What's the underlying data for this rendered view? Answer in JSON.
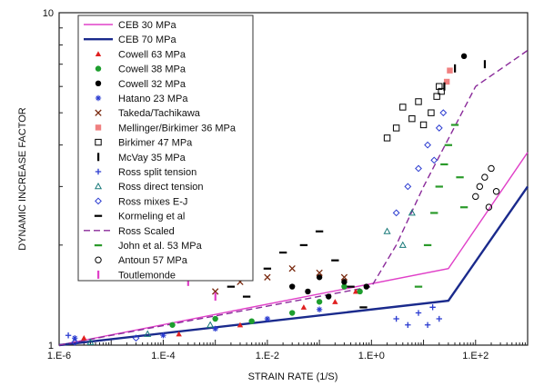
{
  "chart_data": {
    "type": "scatter",
    "xlabel": "STRAIN RATE (1/S)",
    "ylabel": "DYNAMIC INCREASE FACTOR",
    "x_scale": "log",
    "y_scale": "log",
    "xlim": [
      1e-06,
      1000
    ],
    "ylim": [
      1,
      10
    ],
    "x_ticks": [
      {
        "value": 1e-06,
        "label": "1.E-6"
      },
      {
        "value": 0.0001,
        "label": "1.E-4"
      },
      {
        "value": 0.01,
        "label": "1.E-2"
      },
      {
        "value": 1,
        "label": "1.E+0"
      },
      {
        "value": 100,
        "label": "1.E+2"
      }
    ],
    "y_ticks": [
      {
        "value": 1,
        "label": "1"
      },
      {
        "value": 10,
        "label": "10"
      }
    ],
    "legend_position": "top-left",
    "series": [
      {
        "name": "CEB 30 MPa",
        "kind": "line",
        "color": "#e040c8",
        "dash": "none",
        "width": 1.4,
        "points": [
          [
            1e-06,
            1.0
          ],
          [
            30,
            1.7
          ],
          [
            1000,
            3.8
          ]
        ]
      },
      {
        "name": "CEB 70 MPa",
        "kind": "line",
        "color": "#1a2a8c",
        "dash": "none",
        "width": 2.4,
        "points": [
          [
            1e-06,
            1.0
          ],
          [
            30,
            1.36
          ],
          [
            1000,
            3.0
          ]
        ]
      },
      {
        "name": "Cowell 63 MPa",
        "kind": "marker",
        "marker": "triangle-filled",
        "color": "#e02020",
        "points": [
          [
            3e-06,
            1.05
          ],
          [
            0.0002,
            1.08
          ],
          [
            0.003,
            1.15
          ],
          [
            0.05,
            1.3
          ],
          [
            0.2,
            1.35
          ],
          [
            0.5,
            1.45
          ]
        ]
      },
      {
        "name": "Cowell 38 MPa",
        "kind": "marker",
        "marker": "circle-filled",
        "color": "#1e9e2e",
        "points": [
          [
            0.00015,
            1.15
          ],
          [
            0.001,
            1.2
          ],
          [
            0.005,
            1.18
          ],
          [
            0.03,
            1.25
          ],
          [
            0.1,
            1.35
          ],
          [
            0.3,
            1.5
          ],
          [
            0.6,
            1.45
          ]
        ]
      },
      {
        "name": "Cowell 32 MPa",
        "kind": "marker",
        "marker": "circle-filled",
        "color": "#000000",
        "points": [
          [
            0.03,
            1.5
          ],
          [
            0.06,
            1.45
          ],
          [
            0.1,
            1.6
          ],
          [
            0.15,
            1.4
          ],
          [
            0.3,
            1.55
          ],
          [
            0.8,
            1.5
          ],
          [
            60,
            7.4
          ]
        ]
      },
      {
        "name": "Hatano 23 MPa",
        "kind": "marker",
        "marker": "star",
        "color": "#2a3bd0",
        "points": [
          [
            2e-06,
            1.05
          ],
          [
            0.0001,
            1.07
          ],
          [
            0.001,
            1.12
          ],
          [
            0.01,
            1.2
          ],
          [
            0.1,
            1.28
          ]
        ]
      },
      {
        "name": "Takeda/Tachikawa",
        "kind": "marker",
        "marker": "x",
        "color": "#7a2a10",
        "points": [
          [
            0.001,
            1.45
          ],
          [
            0.003,
            1.55
          ],
          [
            0.01,
            1.6
          ],
          [
            0.03,
            1.7
          ],
          [
            0.1,
            1.65
          ],
          [
            0.3,
            1.6
          ]
        ]
      },
      {
        "name": "Mellinger/Birkimer 36 MPa",
        "kind": "marker",
        "marker": "square-filled",
        "color": "#f08080",
        "points": [
          [
            28,
            6.2
          ],
          [
            32,
            6.7
          ]
        ]
      },
      {
        "name": "Birkimer 47 MPa",
        "kind": "marker",
        "marker": "square-open",
        "color": "#000000",
        "points": [
          [
            2,
            4.2
          ],
          [
            3,
            4.5
          ],
          [
            4,
            5.2
          ],
          [
            6,
            4.8
          ],
          [
            8,
            5.4
          ],
          [
            10,
            4.6
          ],
          [
            14,
            5.0
          ],
          [
            18,
            5.6
          ],
          [
            20,
            6.0
          ],
          [
            22,
            5.8
          ]
        ]
      },
      {
        "name": "McVay 35 MPa",
        "kind": "marker",
        "marker": "vbar",
        "color": "#000000",
        "points": [
          [
            25,
            6.0
          ],
          [
            40,
            6.8
          ],
          [
            150,
            7.0
          ]
        ]
      },
      {
        "name": "Ross split tension",
        "kind": "marker",
        "marker": "plus",
        "color": "#2a3bd0",
        "points": [
          [
            1.5e-06,
            1.07
          ],
          [
            3,
            1.2
          ],
          [
            5,
            1.15
          ],
          [
            8,
            1.25
          ],
          [
            12,
            1.15
          ],
          [
            15,
            1.3
          ],
          [
            20,
            1.2
          ]
        ]
      },
      {
        "name": "Ross direct tension",
        "kind": "marker",
        "marker": "triangle-open",
        "color": "#1a7a7a",
        "points": [
          [
            4e-06,
            1.02
          ],
          [
            5e-05,
            1.08
          ],
          [
            0.0008,
            1.15
          ],
          [
            2,
            2.2
          ],
          [
            4,
            2.0
          ],
          [
            6,
            2.5
          ]
        ]
      },
      {
        "name": "Ross mixes E-J",
        "kind": "marker",
        "marker": "diamond-open",
        "color": "#2a3bd0",
        "points": [
          [
            2e-06,
            1.02
          ],
          [
            3e-05,
            1.05
          ],
          [
            3,
            2.5
          ],
          [
            5,
            3.0
          ],
          [
            8,
            3.4
          ],
          [
            12,
            4.0
          ],
          [
            16,
            3.6
          ],
          [
            20,
            4.5
          ],
          [
            24,
            5.0
          ]
        ]
      },
      {
        "name": "Kormeling et al",
        "kind": "marker",
        "marker": "dash",
        "color": "#000000",
        "points": [
          [
            0.002,
            1.5
          ],
          [
            0.004,
            1.4
          ],
          [
            0.01,
            1.7
          ],
          [
            0.02,
            1.9
          ],
          [
            0.05,
            2.0
          ],
          [
            0.1,
            2.2
          ],
          [
            0.2,
            1.8
          ],
          [
            0.4,
            1.5
          ],
          [
            0.7,
            1.3
          ]
        ]
      },
      {
        "name": "Ross Scaled",
        "kind": "line",
        "color": "#8a2a9a",
        "dash": "7,4",
        "width": 1.4,
        "points": [
          [
            1e-06,
            1.0
          ],
          [
            1,
            1.5
          ],
          [
            3,
            2.0
          ],
          [
            10,
            3.0
          ],
          [
            100,
            6.0
          ],
          [
            1000,
            7.7
          ]
        ]
      },
      {
        "name": "John et al. 53 MPa",
        "kind": "marker",
        "marker": "dash",
        "color": "#2a9a2a",
        "points": [
          [
            8,
            1.5
          ],
          [
            12,
            2.0
          ],
          [
            16,
            2.5
          ],
          [
            20,
            3.0
          ],
          [
            25,
            3.5
          ],
          [
            30,
            4.0
          ],
          [
            40,
            4.6
          ],
          [
            50,
            3.2
          ],
          [
            60,
            2.6
          ]
        ]
      },
      {
        "name": "Antoun 57 MPa",
        "kind": "marker",
        "marker": "circle-open",
        "color": "#000000",
        "points": [
          [
            100,
            2.8
          ],
          [
            120,
            3.0
          ],
          [
            150,
            3.2
          ],
          [
            180,
            2.6
          ],
          [
            200,
            3.4
          ],
          [
            250,
            2.9
          ]
        ]
      },
      {
        "name": "Toutlemonde",
        "kind": "marker",
        "marker": "vbar",
        "color": "#e040c8",
        "points": [
          [
            1e-05,
            1.9
          ],
          [
            3e-05,
            1.8
          ],
          [
            0.0001,
            1.65
          ],
          [
            0.0003,
            1.55
          ],
          [
            0.001,
            1.4
          ]
        ]
      }
    ]
  }
}
